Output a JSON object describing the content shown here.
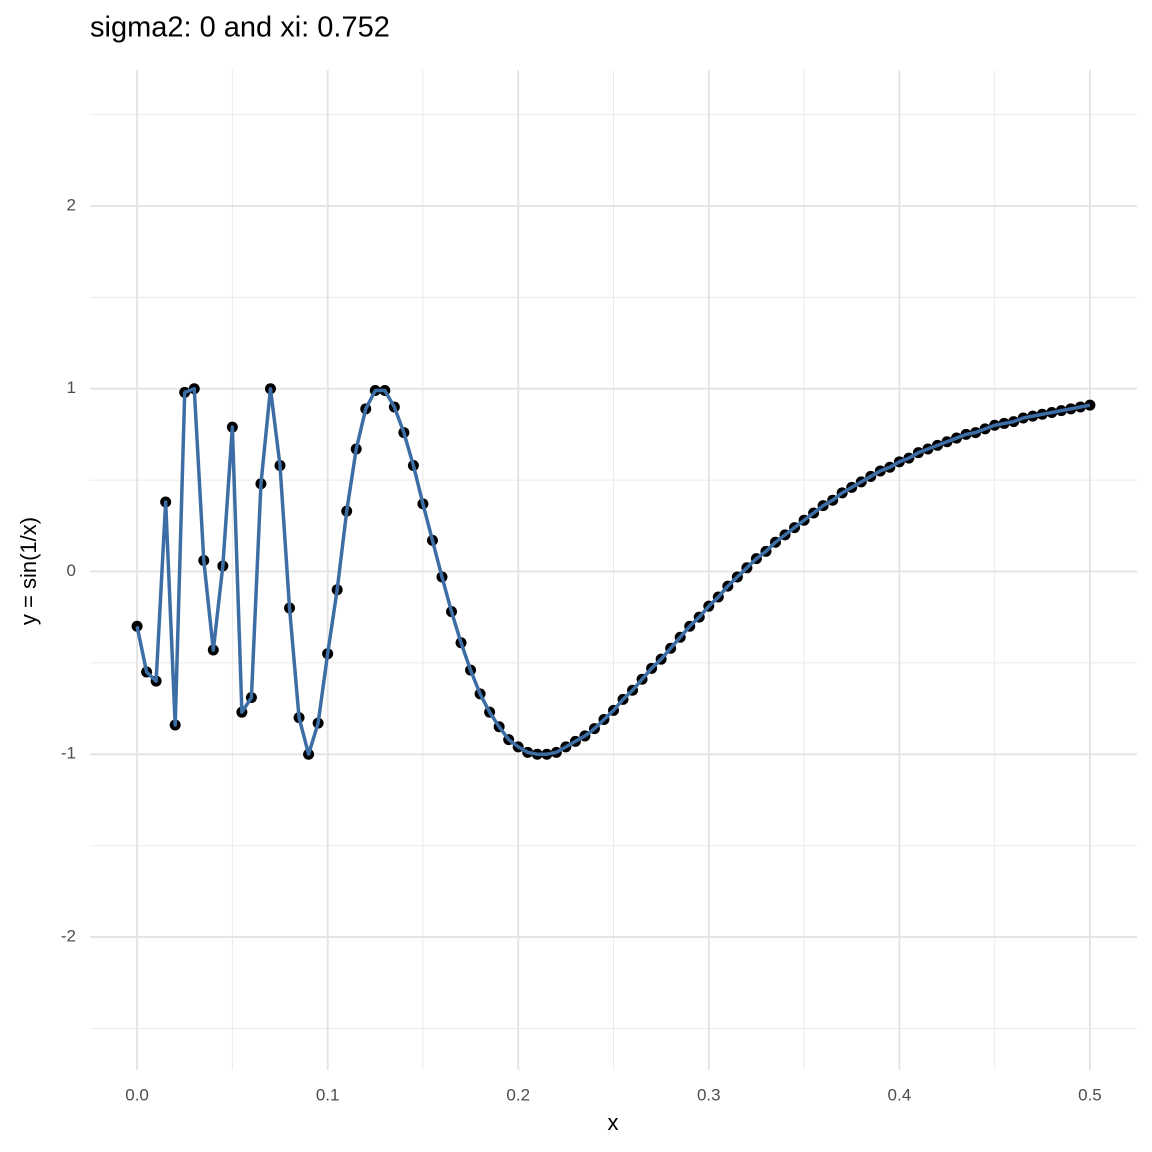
{
  "chart_data": {
    "type": "line",
    "title": "sigma2: 0 and xi: 0.752",
    "x_label": "x",
    "y_label": "y = sin(1/x)",
    "x": [
      0,
      0.005,
      0.01,
      0.015,
      0.02,
      0.025,
      0.03,
      0.035,
      0.04,
      0.045,
      0.05,
      0.055,
      0.06,
      0.065,
      0.07,
      0.075,
      0.08,
      0.085,
      0.09,
      0.095,
      0.1,
      0.105,
      0.11,
      0.115,
      0.12,
      0.125,
      0.13,
      0.135,
      0.14,
      0.145,
      0.15,
      0.155,
      0.16,
      0.165,
      0.17,
      0.175,
      0.18,
      0.185,
      0.19,
      0.195,
      0.2,
      0.205,
      0.21,
      0.215,
      0.22,
      0.225,
      0.23,
      0.235,
      0.24,
      0.245,
      0.25,
      0.255,
      0.26,
      0.265,
      0.27,
      0.275,
      0.28,
      0.285,
      0.29,
      0.295,
      0.3,
      0.305,
      0.31,
      0.315,
      0.32,
      0.325,
      0.33,
      0.335,
      0.34,
      0.345,
      0.35,
      0.355,
      0.36,
      0.365,
      0.37,
      0.375,
      0.38,
      0.385,
      0.39,
      0.395,
      0.4,
      0.405,
      0.41,
      0.415,
      0.42,
      0.425,
      0.43,
      0.435,
      0.44,
      0.445,
      0.45,
      0.455,
      0.46,
      0.465,
      0.47,
      0.475,
      0.48,
      0.485,
      0.49,
      0.495,
      0.5
    ],
    "series": [
      {
        "color": "#3c6ea5",
        "point_color": "#000000",
        "values": [
          -0.3,
          -0.55,
          -0.6,
          0.38,
          -0.84,
          0.98,
          1.0,
          0.06,
          -0.43,
          0.03,
          0.79,
          -0.77,
          -0.69,
          0.48,
          1.0,
          0.58,
          -0.2,
          -0.8,
          -1.0,
          -0.83,
          -0.45,
          -0.1,
          0.33,
          0.67,
          0.89,
          0.99,
          0.99,
          0.9,
          0.76,
          0.58,
          0.37,
          0.17,
          -0.03,
          -0.22,
          -0.39,
          -0.54,
          -0.67,
          -0.77,
          -0.85,
          -0.92,
          -0.96,
          -0.99,
          -1.0,
          -1.0,
          -0.99,
          -0.96,
          -0.93,
          -0.9,
          -0.86,
          -0.81,
          -0.76,
          -0.7,
          -0.65,
          -0.59,
          -0.53,
          -0.48,
          -0.42,
          -0.36,
          -0.3,
          -0.25,
          -0.19,
          -0.14,
          -0.08,
          -0.03,
          0.02,
          0.07,
          0.11,
          0.16,
          0.2,
          0.24,
          0.28,
          0.32,
          0.36,
          0.39,
          0.43,
          0.46,
          0.49,
          0.52,
          0.55,
          0.57,
          0.6,
          0.62,
          0.65,
          0.67,
          0.69,
          0.71,
          0.73,
          0.75,
          0.76,
          0.78,
          0.8,
          0.81,
          0.82,
          0.84,
          0.85,
          0.86,
          0.87,
          0.88,
          0.89,
          0.9,
          0.91
        ]
      }
    ],
    "xlim": [
      -0.0247,
      0.5247
    ],
    "ylim": [
      -2.728,
      2.744
    ],
    "xticks": [
      {
        "value": 0,
        "label": "0.0"
      },
      0.1,
      0.2,
      0.3,
      0.4,
      0.5
    ],
    "yticks": [
      -2,
      -1,
      0,
      1,
      2
    ],
    "minor_xticks": [
      0.05,
      0.15,
      0.25,
      0.35,
      0.45
    ],
    "minor_yticks": [
      -2.5,
      -1.5,
      -0.5,
      0.5,
      1.5,
      2.5
    ],
    "grid": true
  }
}
